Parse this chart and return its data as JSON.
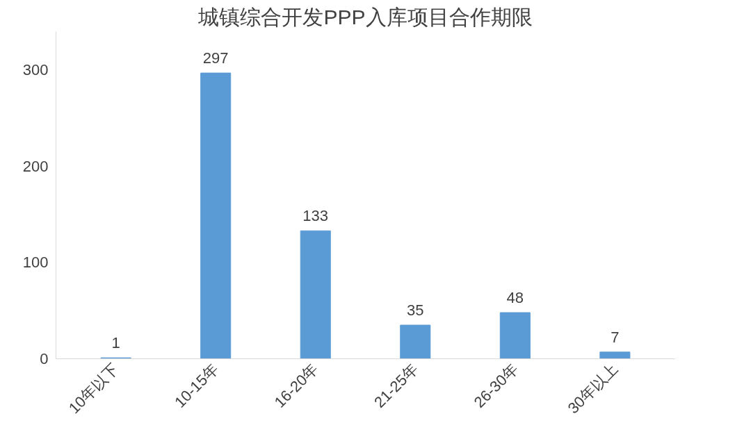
{
  "chart_data": {
    "type": "bar",
    "title": "城镇综合开发PPP入库项目合作期限",
    "categories": [
      "10年以下",
      "10-15年",
      "16-20年",
      "21-25年",
      "26-30年",
      "30年以上"
    ],
    "values": [
      1,
      297,
      133,
      35,
      48,
      7
    ],
    "color": "#5b9bd5",
    "ylim": [
      0,
      340
    ],
    "yticks": [
      0,
      100,
      200,
      300
    ],
    "data_labels": true,
    "grid": false
  }
}
